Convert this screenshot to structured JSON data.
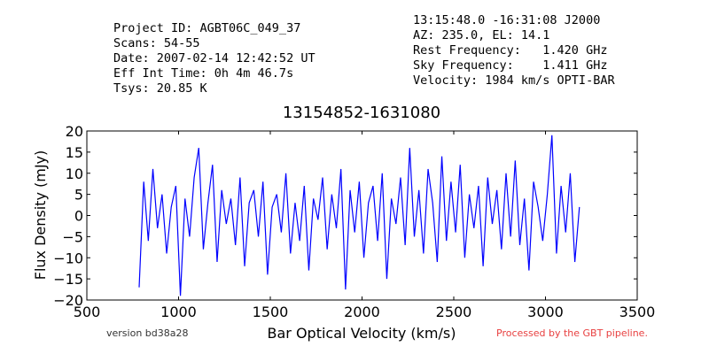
{
  "chart_data": {
    "type": "line",
    "header_left": [
      "Project ID: AGBT06C_049_37",
      "Scans: 54-55",
      "Date: 2007-02-14 12:42:52 UT",
      "Eff Int Time: 0h 4m 46.7s",
      "Tsys: 20.85 K"
    ],
    "header_right": [
      "13:15:48.0 -16:31:08 J2000",
      "AZ: 235.0, EL: 14.1",
      "Rest Frequency:   1.420 GHz",
      "Sky Frequency:    1.411 GHz",
      "Velocity: 1984 km/s OPTI-BAR"
    ],
    "title": "13154852-1631080",
    "xlabel": "Bar Optical Velocity (km/s)",
    "ylabel": "Flux Density (mJy)",
    "footer_left": "version bd38a28",
    "footer_right": "Processed by the GBT pipeline.",
    "xlim": [
      500,
      3500
    ],
    "xticks": [
      500,
      1000,
      1500,
      2000,
      2500,
      3000,
      3500
    ],
    "ylim": [
      -20,
      20
    ],
    "yticks": [
      {
        "value": -20,
        "label": "−20"
      },
      {
        "value": -15,
        "label": "−15"
      },
      {
        "value": -10,
        "label": "−10"
      },
      {
        "value": -5,
        "label": "−5"
      },
      0,
      5,
      10,
      15,
      20
    ],
    "x": [
      785,
      810,
      835,
      860,
      885,
      910,
      935,
      960,
      985,
      1010,
      1035,
      1060,
      1085,
      1110,
      1135,
      1160,
      1185,
      1210,
      1235,
      1260,
      1285,
      1310,
      1335,
      1360,
      1385,
      1410,
      1435,
      1460,
      1485,
      1510,
      1535,
      1560,
      1585,
      1610,
      1635,
      1660,
      1685,
      1710,
      1735,
      1760,
      1785,
      1810,
      1835,
      1860,
      1885,
      1910,
      1935,
      1960,
      1985,
      2010,
      2035,
      2060,
      2085,
      2110,
      2135,
      2160,
      2185,
      2210,
      2235,
      2260,
      2285,
      2310,
      2335,
      2360,
      2385,
      2410,
      2435,
      2460,
      2485,
      2510,
      2535,
      2560,
      2585,
      2610,
      2635,
      2660,
      2685,
      2710,
      2735,
      2760,
      2785,
      2810,
      2835,
      2860,
      2885,
      2910,
      2935,
      2960,
      2985,
      3010,
      3035,
      3060,
      3085,
      3110,
      3135,
      3160,
      3185
    ],
    "series": [
      {
        "color": "#0000ff",
        "values": [
          -17,
          8,
          -6,
          11,
          -3,
          5,
          -9,
          2,
          7,
          -19,
          4,
          -5,
          9,
          16,
          -8,
          3,
          12,
          -11,
          6,
          -2,
          4,
          -7,
          9,
          -12,
          3,
          6,
          -5,
          8,
          -14,
          2,
          5,
          -4,
          10,
          -9,
          3,
          -6,
          7,
          -13,
          4,
          -1,
          9,
          -8,
          5,
          -3,
          11,
          -17.5,
          6,
          -4,
          8,
          -10,
          3,
          7,
          -6,
          10,
          -15,
          4,
          -2,
          9,
          -7,
          16,
          -5,
          6,
          -9,
          11,
          3,
          -11,
          14,
          -6,
          8,
          -4,
          12,
          -10,
          5,
          -3,
          7,
          -12,
          9,
          -2,
          6,
          -8,
          10,
          -5,
          13,
          -7,
          4,
          -13,
          8,
          2,
          -6,
          5,
          19,
          -9,
          7,
          -4,
          10,
          -11,
          2
        ]
      }
    ]
  }
}
